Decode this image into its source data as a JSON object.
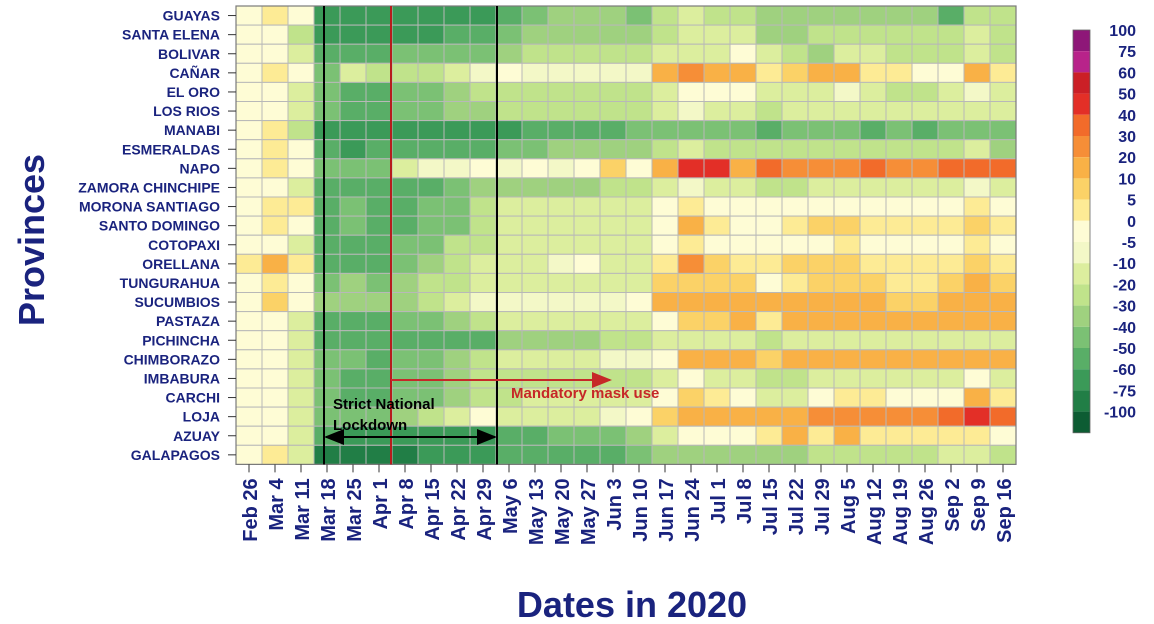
{
  "chart_data": {
    "type": "heatmap",
    "xlabel": "Dates in 2020",
    "ylabel": "Provinces",
    "dates": [
      "Feb 26",
      "Mar 4",
      "Mar 11",
      "Mar 18",
      "Mar 25",
      "Apr 1",
      "Apr 8",
      "Apr 15",
      "Apr 22",
      "Apr 29",
      "May 6",
      "May 13",
      "May 20",
      "May 27",
      "Jun 3",
      "Jun 10",
      "Jun 17",
      "Jun 24",
      "Jul 1",
      "Jul 8",
      "Jul 15",
      "Jul 22",
      "Jul 29",
      "Aug 5",
      "Aug 12",
      "Aug 19",
      "Aug 26",
      "Sep 2",
      "Sep 9",
      "Sep 16"
    ],
    "provinces": [
      "GUAYAS",
      "SANTA ELENA",
      "BOLIVAR",
      "CAÑAR",
      "EL ORO",
      "LOS RIOS",
      "MANABI",
      "ESMERALDAS",
      "NAPO",
      "ZAMORA CHINCHIPE",
      "MORONA SANTIAGO",
      "SANTO DOMINGO",
      "COTOPAXI",
      "ORELLANA",
      "TUNGURAHUA",
      "SUCUMBIOS",
      "PASTAZA",
      "PICHINCHA",
      "CHIMBORAZO",
      "IMBABURA",
      "CARCHI",
      "LOJA",
      "AZUAY",
      "GALAPAGOS"
    ],
    "values": [
      [
        0,
        5,
        0,
        -60,
        -60,
        -60,
        -60,
        -60,
        -60,
        -60,
        -50,
        -40,
        -30,
        -30,
        -30,
        -40,
        -20,
        -10,
        -20,
        -20,
        -30,
        -30,
        -30,
        -30,
        -30,
        -30,
        -30,
        -50,
        -20,
        -20
      ],
      [
        0,
        0,
        -20,
        -60,
        -60,
        -60,
        -60,
        -60,
        -50,
        -50,
        -40,
        -30,
        -30,
        -30,
        -30,
        -30,
        -20,
        -10,
        -10,
        -10,
        -30,
        -30,
        -20,
        -20,
        -20,
        -20,
        -20,
        -20,
        -10,
        -20
      ],
      [
        0,
        0,
        -10,
        -50,
        -50,
        -50,
        -40,
        -40,
        -40,
        -40,
        -30,
        -20,
        -20,
        -20,
        -20,
        -20,
        -10,
        -10,
        -10,
        0,
        -10,
        -20,
        -30,
        -10,
        -10,
        -20,
        -20,
        -20,
        -10,
        -20
      ],
      [
        0,
        5,
        0,
        -40,
        -10,
        -20,
        -20,
        -20,
        -10,
        -5,
        0,
        -5,
        -5,
        -5,
        -5,
        -5,
        20,
        30,
        20,
        20,
        5,
        10,
        15,
        15,
        5,
        5,
        0,
        0,
        15,
        5
      ],
      [
        0,
        0,
        -10,
        -40,
        -50,
        -50,
        -40,
        -40,
        -30,
        -20,
        -20,
        -20,
        -20,
        -20,
        -20,
        -20,
        -10,
        0,
        0,
        0,
        -10,
        -10,
        -10,
        -5,
        -10,
        -20,
        -20,
        -10,
        -5,
        -10
      ],
      [
        0,
        0,
        -10,
        -40,
        -50,
        -50,
        -40,
        -40,
        -30,
        -30,
        -20,
        -20,
        -20,
        -20,
        -20,
        -20,
        -10,
        -5,
        -10,
        -10,
        -20,
        -10,
        -10,
        -10,
        -10,
        -10,
        -10,
        -10,
        -10,
        -10
      ],
      [
        0,
        5,
        -20,
        -60,
        -60,
        -60,
        -60,
        -60,
        -60,
        -60,
        -60,
        -50,
        -50,
        -50,
        -50,
        -40,
        -40,
        -40,
        -40,
        -40,
        -50,
        -40,
        -40,
        -40,
        -50,
        -40,
        -50,
        -40,
        -40,
        -40
      ],
      [
        0,
        5,
        0,
        -50,
        -60,
        -50,
        -50,
        -50,
        -50,
        -50,
        -40,
        -40,
        -30,
        -30,
        -30,
        -30,
        -20,
        -10,
        -20,
        -20,
        -20,
        -20,
        -20,
        -20,
        -20,
        -20,
        -20,
        -20,
        -10,
        -30
      ],
      [
        0,
        5,
        0,
        -40,
        -40,
        -40,
        -10,
        -5,
        -5,
        0,
        -5,
        0,
        -5,
        0,
        10,
        0,
        20,
        50,
        50,
        20,
        40,
        30,
        30,
        30,
        40,
        30,
        30,
        40,
        40,
        40
      ],
      [
        0,
        0,
        -10,
        -50,
        -50,
        -50,
        -50,
        -50,
        -40,
        -30,
        -30,
        -30,
        -30,
        -30,
        -20,
        -20,
        -10,
        -5,
        -10,
        -10,
        -20,
        -20,
        -10,
        -10,
        -10,
        -10,
        -10,
        -10,
        -5,
        -10
      ],
      [
        0,
        5,
        5,
        -50,
        -40,
        -50,
        -50,
        -40,
        -40,
        -20,
        -10,
        -10,
        -10,
        -10,
        -10,
        -10,
        0,
        5,
        0,
        0,
        0,
        0,
        0,
        0,
        0,
        0,
        0,
        0,
        5,
        0
      ],
      [
        0,
        5,
        0,
        -50,
        -40,
        -50,
        -50,
        -40,
        -40,
        -20,
        -10,
        -10,
        -10,
        -10,
        -10,
        -10,
        0,
        15,
        5,
        0,
        0,
        5,
        10,
        10,
        5,
        5,
        5,
        5,
        10,
        5
      ],
      [
        0,
        0,
        -10,
        -50,
        -50,
        -50,
        -40,
        -40,
        -20,
        -20,
        -10,
        -10,
        -10,
        -10,
        -10,
        -10,
        0,
        5,
        0,
        0,
        0,
        0,
        0,
        5,
        0,
        0,
        0,
        0,
        5,
        0
      ],
      [
        5,
        20,
        5,
        -50,
        -50,
        -50,
        -40,
        -30,
        -20,
        -10,
        -10,
        -10,
        -5,
        0,
        -10,
        -10,
        5,
        30,
        10,
        5,
        5,
        10,
        10,
        10,
        5,
        5,
        5,
        5,
        10,
        5
      ],
      [
        0,
        5,
        0,
        -40,
        -30,
        -40,
        -30,
        -20,
        -20,
        -10,
        -10,
        -10,
        -10,
        -10,
        -10,
        -10,
        10,
        10,
        10,
        10,
        0,
        5,
        10,
        10,
        10,
        5,
        5,
        10,
        15,
        10
      ],
      [
        0,
        10,
        0,
        -30,
        -30,
        -30,
        -30,
        -20,
        -10,
        -5,
        -5,
        -5,
        -5,
        -5,
        -5,
        0,
        15,
        20,
        20,
        15,
        15,
        15,
        20,
        15,
        15,
        10,
        10,
        15,
        20,
        15
      ],
      [
        0,
        0,
        -10,
        -50,
        -50,
        -50,
        -40,
        -40,
        -30,
        -20,
        -10,
        -10,
        -10,
        -10,
        -10,
        -10,
        0,
        10,
        10,
        15,
        5,
        15,
        20,
        20,
        20,
        20,
        15,
        20,
        20,
        20
      ],
      [
        0,
        0,
        -10,
        -50,
        -50,
        -50,
        -50,
        -50,
        -50,
        -50,
        -30,
        -30,
        -30,
        -30,
        -20,
        -20,
        -10,
        -10,
        -10,
        -10,
        -20,
        -10,
        -10,
        -10,
        -10,
        -10,
        -10,
        -10,
        -10,
        -10
      ],
      [
        0,
        0,
        -10,
        -40,
        -40,
        -50,
        -40,
        -40,
        -30,
        -20,
        -10,
        -10,
        -10,
        -10,
        -5,
        -5,
        0,
        15,
        15,
        15,
        10,
        15,
        15,
        20,
        15,
        15,
        15,
        15,
        20,
        15
      ],
      [
        0,
        0,
        -10,
        -40,
        -50,
        -50,
        -40,
        -40,
        -30,
        -20,
        -20,
        -20,
        -20,
        -20,
        -20,
        -20,
        -10,
        0,
        -10,
        -10,
        -20,
        -20,
        -10,
        -10,
        -10,
        -10,
        -10,
        -10,
        0,
        -10
      ],
      [
        0,
        0,
        -10,
        -40,
        -50,
        -50,
        -40,
        -40,
        -30,
        -20,
        -20,
        -10,
        -10,
        -10,
        -10,
        -10,
        0,
        10,
        5,
        0,
        -10,
        -10,
        0,
        5,
        5,
        0,
        0,
        0,
        15,
        5
      ],
      [
        0,
        0,
        -10,
        -40,
        -40,
        -40,
        -30,
        -20,
        -10,
        0,
        -10,
        -10,
        -10,
        -10,
        -5,
        0,
        10,
        20,
        20,
        20,
        15,
        20,
        25,
        25,
        30,
        25,
        25,
        40,
        50,
        40
      ],
      [
        0,
        0,
        -10,
        -50,
        -60,
        -60,
        -60,
        -60,
        -60,
        -60,
        -50,
        -50,
        -40,
        -40,
        -40,
        -30,
        -10,
        0,
        0,
        0,
        5,
        15,
        5,
        20,
        5,
        5,
        5,
        5,
        5,
        0
      ],
      [
        0,
        5,
        -10,
        -75,
        -75,
        -75,
        -75,
        -60,
        -60,
        -60,
        -50,
        -50,
        -50,
        -50,
        -50,
        -40,
        -30,
        -30,
        -30,
        -30,
        -30,
        -30,
        -20,
        -20,
        -20,
        -20,
        -20,
        -10,
        -10,
        -20
      ]
    ],
    "legend": {
      "levels": [
        100,
        75,
        60,
        50,
        40,
        30,
        20,
        10,
        5,
        0,
        -5,
        -10,
        -20,
        -30,
        -40,
        -50,
        -60,
        -75,
        -100
      ],
      "colors": [
        "#8e1778",
        "#b8238a",
        "#cb1f26",
        "#e32f27",
        "#f26b2a",
        "#f68e37",
        "#f9b146",
        "#fbd267",
        "#fdeb95",
        "#fefcd5",
        "#f3f8c7",
        "#dcee9e",
        "#c0e38b",
        "#9fd17f",
        "#7bc174",
        "#59ae67",
        "#3b9a58",
        "#217e46",
        "#0d5c33"
      ]
    },
    "annotations": [
      {
        "text_lines": [
          "Strict National",
          "Lockdown"
        ],
        "color": "#000000",
        "from_date": "Mar 18",
        "to_date": "May 6"
      },
      {
        "text": "Mandatory mask use",
        "color": "#c62828",
        "from_date": "Apr 8"
      }
    ]
  }
}
